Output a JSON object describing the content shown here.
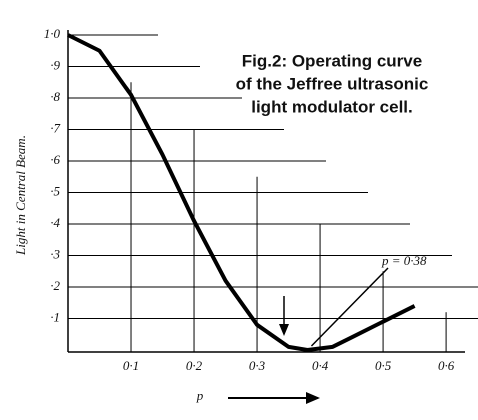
{
  "chart_data": {
    "type": "line",
    "title": [
      "Fig.2: Operating curve",
      "of the Jeffree ultrasonic",
      "light modulator cell."
    ],
    "y_label": "Light in Central Beam.",
    "x_label": "p",
    "x": [
      0,
      0.05,
      0.1,
      0.15,
      0.2,
      0.25,
      0.3,
      0.35,
      0.38,
      0.42,
      0.45,
      0.5,
      0.55
    ],
    "series": [
      {
        "color": "#000000",
        "values": [
          1.0,
          0.95,
          0.81,
          0.62,
          0.41,
          0.22,
          0.08,
          0.01,
          0.0,
          0.01,
          0.04,
          0.09,
          0.14
        ]
      }
    ],
    "xlim": [
      0,
      0.63
    ],
    "ylim": [
      0,
      1.0
    ],
    "xticks": [
      {
        "value": 0.1,
        "label": "0·1"
      },
      {
        "value": 0.2,
        "label": "0·2"
      },
      {
        "value": 0.3,
        "label": "0·3"
      },
      {
        "value": 0.4,
        "label": "0·4"
      },
      {
        "value": 0.5,
        "label": "0·5"
      },
      {
        "value": 0.6,
        "label": "0·6"
      }
    ],
    "yticks": [
      {
        "value": 0.1,
        "label": "·1"
      },
      {
        "value": 0.2,
        "label": "·2"
      },
      {
        "value": 0.3,
        "label": "·3"
      },
      {
        "value": 0.4,
        "label": "·4"
      },
      {
        "value": 0.5,
        "label": "·5"
      },
      {
        "value": 0.6,
        "label": "·6"
      },
      {
        "value": 0.7,
        "label": "·7"
      },
      {
        "value": 0.8,
        "label": "·8"
      },
      {
        "value": 0.9,
        "label": "·9"
      },
      {
        "value": 1.0,
        "label": "1·0"
      }
    ],
    "grid": true,
    "annotation": {
      "text": "p = 0·38",
      "x": 0.38,
      "y": 0.0
    }
  }
}
